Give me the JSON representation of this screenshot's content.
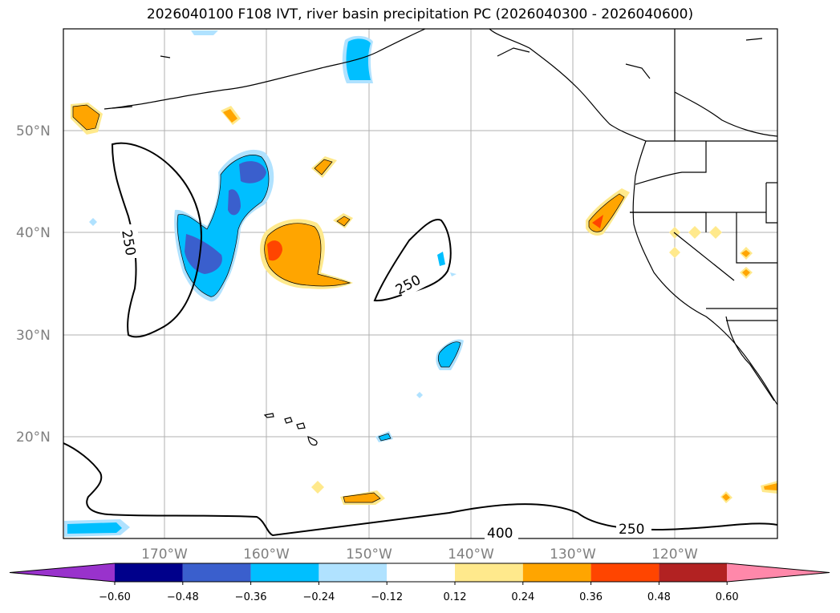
{
  "title": "2026040100 F108 IVT, river basin precipitation PC (2026040300 - 2026040600)",
  "map": {
    "lat_labels": [
      "50°N",
      "40°N",
      "30°N",
      "20°N"
    ],
    "lon_labels": [
      "170°W",
      "160°W",
      "150°W",
      "140°W",
      "130°W",
      "120°W"
    ],
    "contour_labels": [
      "250",
      "250",
      "400",
      "250"
    ]
  },
  "colorbar": {
    "tick_labels": [
      "−0.60",
      "−0.48",
      "−0.36",
      "−0.24",
      "−0.12",
      "0.12",
      "0.24",
      "0.36",
      "0.48",
      "0.60"
    ],
    "colors": [
      "#9932cc",
      "#00008b",
      "#3a5fcd",
      "#00bfff",
      "#b0e2ff",
      "#ffffff",
      "#ffe98c",
      "#ffa500",
      "#ff4500",
      "#b22222",
      "#ff88aa"
    ]
  }
}
